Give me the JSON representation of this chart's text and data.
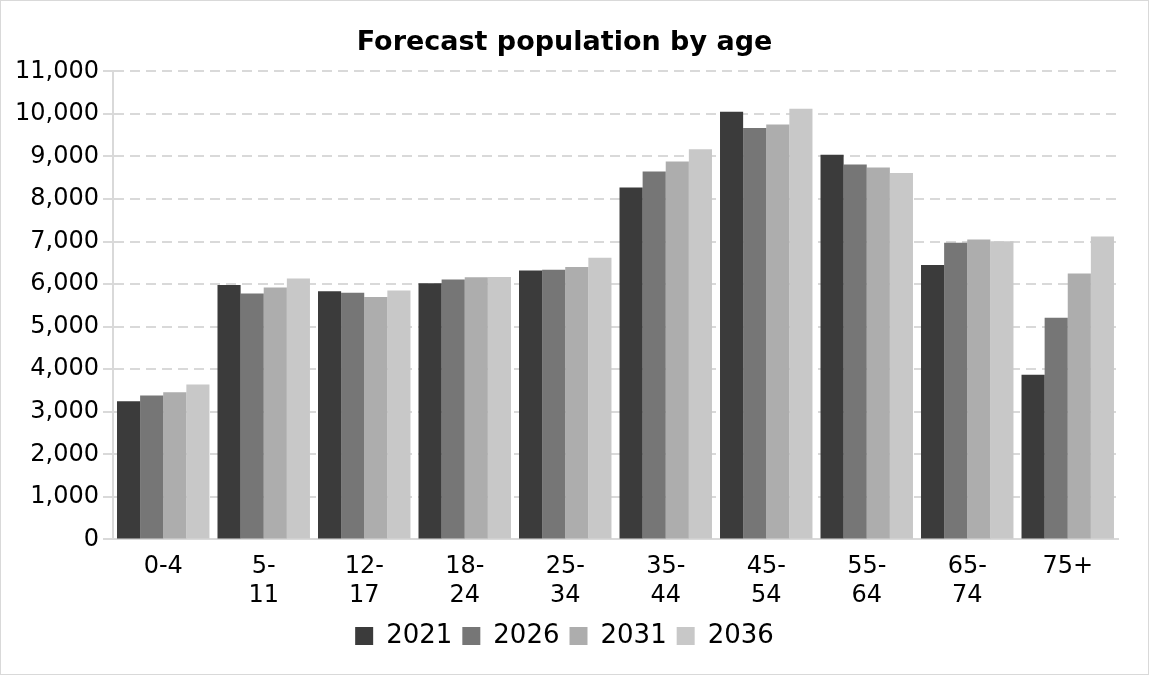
{
  "chart_data": {
    "type": "bar",
    "title": "Forecast population by age",
    "categories": [
      "0-4",
      "5-11",
      "12-17",
      "18-24",
      "25-34",
      "35-44",
      "45-54",
      "55-64",
      "65-74",
      "75+"
    ],
    "series": [
      {
        "name": "2021",
        "color": "#3b3b3b",
        "values": [
          3250,
          5980,
          5830,
          6020,
          6320,
          8270,
          10050,
          9040,
          6450,
          3870
        ]
      },
      {
        "name": "2026",
        "color": "#767676",
        "values": [
          3380,
          5780,
          5800,
          6110,
          6340,
          8650,
          9670,
          8810,
          6970,
          5210
        ]
      },
      {
        "name": "2031",
        "color": "#adadad",
        "values": [
          3460,
          5920,
          5700,
          6160,
          6400,
          8880,
          9750,
          8740,
          7050,
          6250
        ]
      },
      {
        "name": "2036",
        "color": "#c8c8c8",
        "values": [
          3640,
          6130,
          5850,
          6170,
          6620,
          9170,
          10120,
          8610,
          7010,
          7120
        ]
      }
    ],
    "ylim": [
      0,
      11000
    ],
    "yticks": [
      0,
      {
        "value": 1000,
        "label": "1,000"
      },
      {
        "value": 2000,
        "label": "2,000"
      },
      {
        "value": 3000,
        "label": "3,000"
      },
      {
        "value": 4000,
        "label": "4,000"
      },
      {
        "value": 5000,
        "label": "5,000"
      },
      {
        "value": 6000,
        "label": "6,000"
      },
      {
        "value": 7000,
        "label": "7,000"
      },
      {
        "value": 8000,
        "label": "8,000"
      },
      {
        "value": 9000,
        "label": "9,000"
      },
      {
        "value": 10000,
        "label": "10,000"
      },
      {
        "value": 11000,
        "label": "11,000"
      }
    ],
    "grid": "y",
    "legend": "bottom"
  }
}
